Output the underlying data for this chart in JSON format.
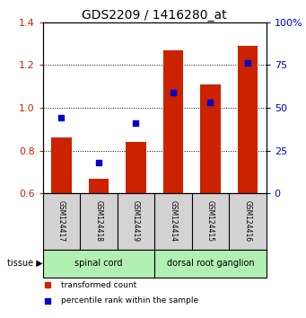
{
  "title": "GDS2209 / 1416280_at",
  "samples": [
    "GSM124417",
    "GSM124418",
    "GSM124419",
    "GSM124414",
    "GSM124415",
    "GSM124416"
  ],
  "transformed_count": [
    0.86,
    0.67,
    0.84,
    1.27,
    1.11,
    1.29
  ],
  "percentile_rank": [
    44,
    18,
    41,
    59,
    53,
    76
  ],
  "ylim_left": [
    0.6,
    1.4
  ],
  "ylim_right": [
    0,
    100
  ],
  "yticks_left": [
    0.6,
    0.8,
    1.0,
    1.2,
    1.4
  ],
  "yticks_right": [
    0,
    25,
    50,
    75,
    100
  ],
  "ytick_labels_right": [
    "0",
    "25",
    "50",
    "75",
    "100%"
  ],
  "tissue_groups": [
    {
      "label": "spinal cord",
      "indices": [
        0,
        1,
        2
      ],
      "color": "#b2f0b2"
    },
    {
      "label": "dorsal root ganglion",
      "indices": [
        3,
        4,
        5
      ],
      "color": "#b2f0b2"
    }
  ],
  "bar_color": "#cc2200",
  "marker_color": "#0000cc",
  "bar_width": 0.55,
  "grid_color": "black",
  "background_color": "#ffffff",
  "title_fontsize": 10,
  "tick_label_fontsize": 8,
  "axis_label_color_left": "#cc2200",
  "axis_label_color_right": "#0000cc",
  "legend_items": [
    "transformed count",
    "percentile rank within the sample"
  ],
  "sample_box_color": "#d3d3d3",
  "tissue_label": "tissue"
}
